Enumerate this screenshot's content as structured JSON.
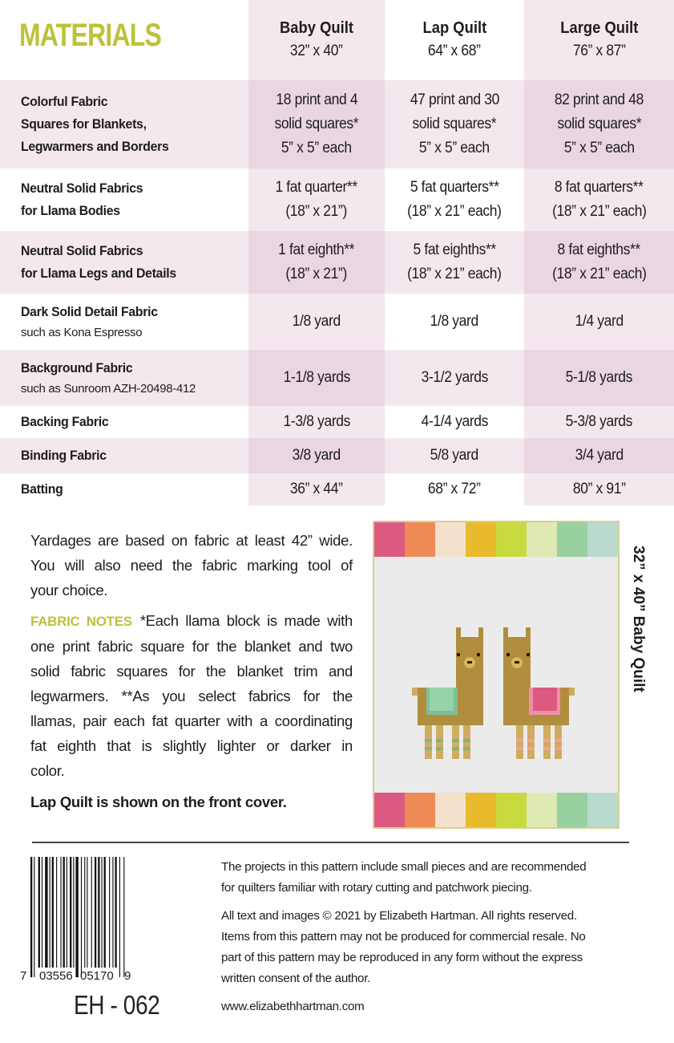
{
  "title": "MATERIALS",
  "columns": [
    {
      "name": "Baby Quilt",
      "size": "32” x 40”"
    },
    {
      "name": "Lap Quilt",
      "size": "64” x 68”"
    },
    {
      "name": "Large Quilt",
      "size": "76” x 87”"
    }
  ],
  "rows": [
    {
      "label": [
        "Colorful Fabric",
        "Squares for Blankets,",
        "Legwarmers and Borders"
      ],
      "note": "",
      "values": [
        [
          "18 print and 4",
          "solid squares*",
          "5” x 5” each"
        ],
        [
          "47 print and 30",
          "solid squares*",
          "5” x 5” each"
        ],
        [
          "82 print and 48",
          "solid squares*",
          "5” x 5” each"
        ]
      ]
    },
    {
      "label": [
        "Neutral Solid Fabrics",
        "for Llama Bodies"
      ],
      "note": "",
      "values": [
        [
          "1 fat quarter**",
          "(18” x 21”)"
        ],
        [
          "5 fat quarters**",
          "(18” x 21” each)"
        ],
        [
          "8 fat quarters**",
          "(18” x 21” each)"
        ]
      ]
    },
    {
      "label": [
        "Neutral Solid Fabrics",
        "for Llama Legs and Details"
      ],
      "note": "",
      "values": [
        [
          "1 fat eighth**",
          "(18” x 21”)"
        ],
        [
          "5 fat eighths**",
          "(18” x 21” each)"
        ],
        [
          "8 fat eighths**",
          "(18” x 21” each)"
        ]
      ]
    },
    {
      "label": [
        "Dark Solid Detail Fabric"
      ],
      "note": "such as Kona Espresso",
      "values": [
        [
          "1/8 yard"
        ],
        [
          "1/8 yard"
        ],
        [
          "1/4 yard"
        ]
      ]
    },
    {
      "label": [
        "Background Fabric"
      ],
      "note": "such as Sunroom AZH-20498-412",
      "values": [
        [
          "1-1/8 yards"
        ],
        [
          "3-1/2 yards"
        ],
        [
          "5-1/8 yards"
        ]
      ]
    },
    {
      "label": [
        "Backing Fabric"
      ],
      "note": "",
      "values": [
        [
          "1-3/8 yards"
        ],
        [
          "4-1/4 yards"
        ],
        [
          "5-3/8 yards"
        ]
      ]
    },
    {
      "label": [
        "Binding Fabric"
      ],
      "note": "",
      "values": [
        [
          "3/8 yard"
        ],
        [
          "5/8 yard"
        ],
        [
          "3/4 yard"
        ]
      ]
    },
    {
      "label": [
        "Batting"
      ],
      "note": "",
      "values": [
        [
          "36” x 44”"
        ],
        [
          "68” x 72”"
        ],
        [
          "80” x 91”"
        ]
      ]
    }
  ],
  "notes": {
    "yardage_lines": [
      "Yardages are based on fabric at least 42” wide.",
      "You will also need the fabric marking tool of",
      "your choice."
    ],
    "fabric_notes_label": "FABRIC NOTES",
    "fabric_notes_lines": [
      "*Each llama block is made with",
      "one print fabric square for the blanket and two",
      "solid fabric squares for the blanket trim and",
      "legwarmers. **As you select fabrics for the",
      "llamas, pair each fat quarter with a coordinating",
      "fat eighth that is slightly lighter or darker in",
      "color."
    ],
    "cover_note": "Lap Quilt is shown on the front cover."
  },
  "quilt": {
    "label": "32” x 40” Baby Quilt",
    "border_colors": [
      "#dc5a82",
      "#ee8a55",
      "#f3e1cc",
      "#e9ba2e",
      "#c8db3e",
      "#dfe9b4",
      "#98d0a0",
      "#b9dacd"
    ],
    "background": "#ebebeb",
    "llama_body": "#b08e3e",
    "llama_legs": "#cfac60"
  },
  "barcode": {
    "digits": [
      "7",
      "03556",
      "05170",
      "9"
    ]
  },
  "product_code": "EH - 062",
  "legal": {
    "p1": [
      "The projects in this pattern include small pieces and are recommended",
      "for quilters familiar with rotary cutting and patchwork piecing."
    ],
    "p2": [
      "All text and images © 2021 by Elizabeth Hartman. All rights reserved.",
      "Items from this pattern may not be produced for commercial resale. No",
      "part of this pattern may be reproduced in any form without the express",
      "written consent of the author."
    ],
    "website": "www.elizabethhartman.com"
  },
  "colors": {
    "accent": "#bcc23a",
    "pink_light": "#f4e8ef",
    "pink_dark": "#ead6e1"
  }
}
